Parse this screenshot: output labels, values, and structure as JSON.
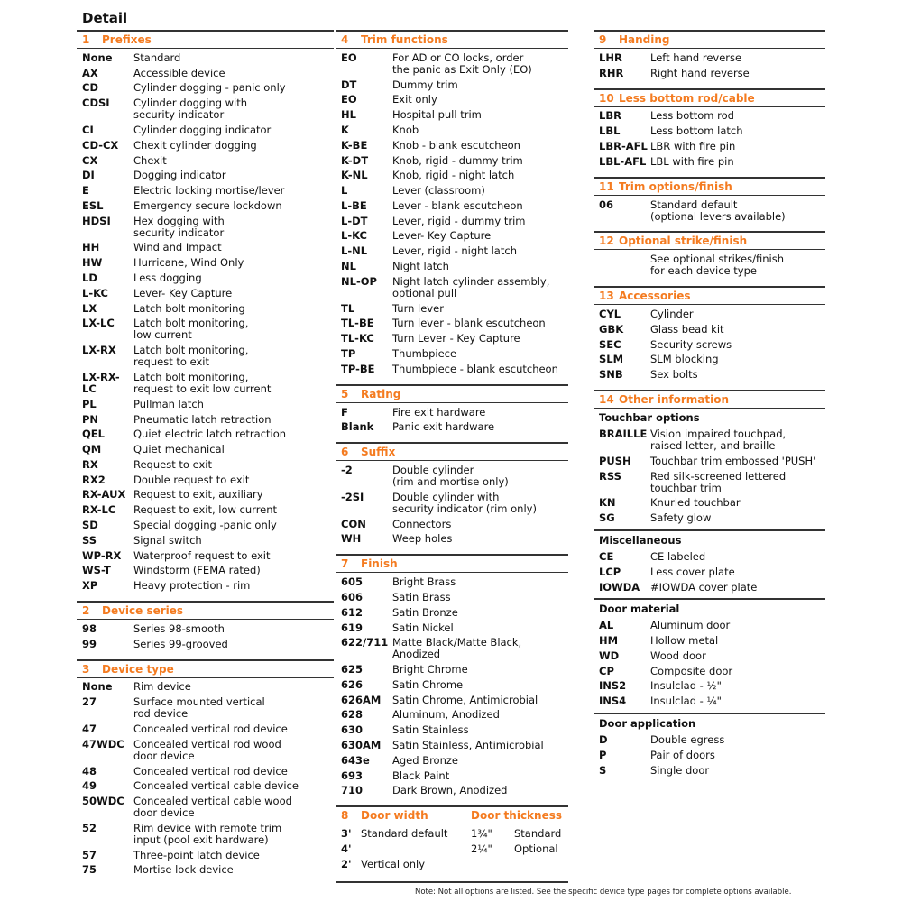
{
  "title": "Detail",
  "columns": [
    [
      {
        "num": "1",
        "label": "Prefixes",
        "items": [
          [
            "None",
            "Standard"
          ],
          [
            "AX",
            "Accessible device"
          ],
          [
            "CD",
            "Cylinder dogging - panic only"
          ],
          [
            "CDSI",
            "Cylinder dogging with\nsecurity indicator"
          ],
          [
            "CI",
            "Cylinder dogging indicator"
          ],
          [
            "CD-CX",
            "Chexit cylinder dogging"
          ],
          [
            "CX",
            "Chexit"
          ],
          [
            "DI",
            "Dogging indicator"
          ],
          [
            "E",
            "Electric locking mortise/lever"
          ],
          [
            "ESL",
            "Emergency secure lockdown"
          ],
          [
            "HDSI",
            "Hex dogging with\nsecurity indicator"
          ],
          [
            "HH",
            "Wind and Impact"
          ],
          [
            "HW",
            "Hurricane, Wind Only"
          ],
          [
            "LD",
            "Less dogging"
          ],
          [
            "L-KC",
            "Lever- Key Capture"
          ],
          [
            "LX",
            "Latch bolt monitoring"
          ],
          [
            "LX-LC",
            "Latch bolt monitoring,\nlow current"
          ],
          [
            "LX-RX",
            "Latch bolt monitoring,\nrequest to exit"
          ],
          [
            "LX-RX-\nLC",
            "Latch bolt monitoring,\nrequest to exit low current"
          ],
          [
            "PL",
            "Pullman latch"
          ],
          [
            "PN",
            "Pneumatic latch retraction"
          ],
          [
            "QEL",
            "Quiet electric latch retraction"
          ],
          [
            "QM",
            "Quiet mechanical"
          ],
          [
            "RX",
            "Request to exit"
          ],
          [
            "RX2",
            "Double request to exit"
          ],
          [
            "RX-AUX",
            "Request to exit, auxiliary"
          ],
          [
            "RX-LC",
            "Request to exit, low current"
          ],
          [
            "SD",
            "Special dogging -panic only"
          ],
          [
            "SS",
            "Signal switch"
          ],
          [
            "WP-RX",
            "Waterproof request to exit"
          ],
          [
            "WS-T",
            "Windstorm (FEMA rated)"
          ],
          [
            "XP",
            "Heavy protection - rim"
          ]
        ]
      },
      {
        "num": "2",
        "label": "Device series",
        "items": [
          [
            "98",
            "Series 98-smooth"
          ],
          [
            "99",
            "Series 99-grooved"
          ]
        ]
      },
      {
        "num": "3",
        "label": "Device type",
        "items": [
          [
            "None",
            "Rim device"
          ],
          [
            "27",
            "Surface mounted vertical\nrod device"
          ],
          [
            "47",
            "Concealed vertical rod device"
          ],
          [
            "47WDC",
            "Concealed vertical rod wood\ndoor device"
          ],
          [
            "48",
            "Concealed vertical rod device"
          ],
          [
            "49",
            "Concealed vertical cable device"
          ],
          [
            "50WDC",
            "Concealed vertical cable wood\ndoor device"
          ],
          [
            "52",
            "Rim device with remote trim\ninput (pool exit hardware)"
          ],
          [
            "57",
            "Three-point latch device"
          ],
          [
            "75",
            "Mortise lock device"
          ]
        ]
      }
    ],
    [
      {
        "num": "4",
        "label": "Trim functions",
        "items": [
          [
            "EO",
            "For AD or CO locks, order\nthe panic as Exit Only (EO)"
          ],
          [
            "DT",
            "Dummy trim"
          ],
          [
            "EO",
            "Exit only"
          ],
          [
            "HL",
            "Hospital pull trim"
          ],
          [
            "K",
            "Knob"
          ],
          [
            "K-BE",
            "Knob - blank escutcheon"
          ],
          [
            "K-DT",
            "Knob, rigid - dummy trim"
          ],
          [
            "K-NL",
            "Knob, rigid - night latch"
          ],
          [
            "L",
            "Lever (classroom)"
          ],
          [
            "L-BE",
            "Lever - blank escutcheon"
          ],
          [
            "L-DT",
            "Lever, rigid - dummy trim"
          ],
          [
            "L-KC",
            "Lever- Key Capture"
          ],
          [
            "L-NL",
            "Lever, rigid - night latch"
          ],
          [
            "NL",
            "Night latch"
          ],
          [
            "NL-OP",
            "Night latch cylinder assembly,\noptional pull"
          ],
          [
            "TL",
            "Turn lever"
          ],
          [
            "TL-BE",
            "Turn lever - blank escutcheon"
          ],
          [
            "TL-KC",
            "Turn Lever - Key Capture"
          ],
          [
            "TP",
            "Thumbpiece"
          ],
          [
            "TP-BE",
            "Thumbpiece - blank escutcheon"
          ]
        ]
      },
      {
        "num": "5",
        "label": "Rating",
        "items": [
          [
            "F",
            "Fire exit hardware"
          ],
          [
            "Blank",
            "Panic exit hardware"
          ]
        ]
      },
      {
        "num": "6",
        "label": "Suffix",
        "items": [
          [
            "-2",
            "Double cylinder\n(rim and mortise only)"
          ],
          [
            "-2SI",
            "Double cylinder with\nsecurity indicator (rim only)"
          ],
          [
            "CON",
            "Connectors"
          ],
          [
            "WH",
            "Weep holes"
          ]
        ]
      },
      {
        "num": "7",
        "label": "Finish",
        "items": [
          [
            "605",
            "Bright Brass"
          ],
          [
            "606",
            "Satin Brass"
          ],
          [
            "612",
            "Satin Bronze"
          ],
          [
            "619",
            "Satin Nickel"
          ],
          [
            "622/711",
            "Matte Black/Matte Black, Anodized"
          ],
          [
            "625",
            "Bright Chrome"
          ],
          [
            "626",
            "Satin Chrome"
          ],
          [
            "626AM",
            "Satin Chrome, Antimicrobial"
          ],
          [
            "628",
            "Aluminum, Anodized"
          ],
          [
            "630",
            "Satin Stainless"
          ],
          [
            "630AM",
            "Satin Stainless, Antimicrobial"
          ],
          [
            "643e",
            "Aged Bronze"
          ],
          [
            "693",
            "Black Paint"
          ],
          [
            "710",
            "Dark Brown, Anodized"
          ]
        ]
      }
    ],
    [
      {
        "num": "9",
        "label": "Handing",
        "items": [
          [
            "LHR",
            "Left hand reverse"
          ],
          [
            "RHR",
            "Right hand reverse"
          ]
        ]
      },
      {
        "num": "10",
        "label": "Less bottom rod/cable",
        "items": [
          [
            "LBR",
            "Less bottom rod"
          ],
          [
            "LBL",
            "Less bottom latch"
          ],
          [
            "LBR-AFL",
            "LBR with fire pin"
          ],
          [
            "LBL-AFL",
            "LBL with fire pin"
          ]
        ]
      },
      {
        "num": "11",
        "label": "Trim options/finish",
        "items": [
          [
            "06",
            "Standard default\n(optional levers available)"
          ]
        ]
      },
      {
        "num": "12",
        "label": "Optional strike/finish",
        "items": [
          [
            "",
            "See optional strikes/finish\nfor each device type"
          ]
        ]
      },
      {
        "num": "13",
        "label": "Accessories",
        "items": [
          [
            "CYL",
            "Cylinder"
          ],
          [
            "GBK",
            "Glass bead kit"
          ],
          [
            "SEC",
            "Security screws"
          ],
          [
            "SLM",
            "SLM blocking"
          ],
          [
            "SNB",
            "Sex bolts"
          ]
        ]
      },
      {
        "num": "14",
        "label": "Other information",
        "groups": [
          {
            "sub": "Touchbar options",
            "items": [
              [
                "BRAILLE",
                "Vision impaired touchpad,\nraised letter, and braille"
              ],
              [
                "PUSH",
                "Touchbar trim embossed 'PUSH'"
              ],
              [
                "RSS",
                "Red silk-screened lettered\ntouchbar trim"
              ],
              [
                "KN",
                "Knurled touchbar"
              ],
              [
                "SG",
                "Safety glow"
              ]
            ]
          },
          {
            "sub": "Miscellaneous",
            "items": [
              [
                "CE",
                "CE labeled"
              ],
              [
                "LCP",
                "Less cover plate"
              ],
              [
                "IOWDA",
                "#IOWDA cover plate"
              ]
            ]
          },
          {
            "sub": "Door material",
            "items": [
              [
                "AL",
                "Aluminum door"
              ],
              [
                "HM",
                "Hollow metal"
              ],
              [
                "WD",
                "Wood door"
              ],
              [
                "CP",
                "Composite door"
              ],
              [
                "INS2",
                "Insulclad - ½\""
              ],
              [
                "INS4",
                "Insulclad - ¼\""
              ]
            ]
          },
          {
            "sub": "Door application",
            "items": [
              [
                "D",
                "Double egress"
              ],
              [
                "P",
                "Pair of doors"
              ],
              [
                "S",
                "Single door"
              ]
            ]
          }
        ]
      }
    ]
  ],
  "door_width": {
    "num": "8",
    "label": "Door width",
    "label2": "Door thickness",
    "rows": [
      [
        "3'",
        "Standard default",
        "1¾\"",
        "Standard"
      ],
      [
        "4'",
        "",
        "2¼\"",
        "Optional"
      ],
      [
        "2'",
        "Vertical only",
        "",
        ""
      ]
    ]
  },
  "note": "Note: Not all options are listed. See the specific device type pages for complete options available.",
  "colors": {
    "accent": "#f47b20",
    "rule": "#333333"
  }
}
